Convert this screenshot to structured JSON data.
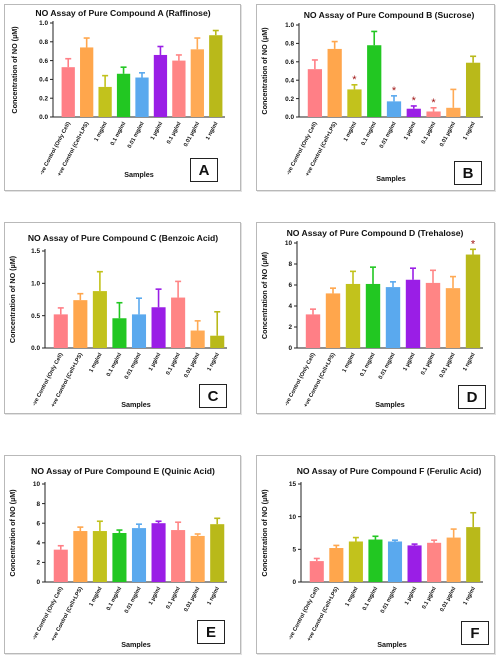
{
  "colors": [
    "#ff7f86",
    "#ffa64c",
    "#c2c21c",
    "#22c722",
    "#5aa9ee",
    "#9a1ee6",
    "#ff8585",
    "#ffaa55",
    "#b9b91a"
  ],
  "star_color": "#a01515",
  "chart_data": [
    {
      "type": "bar",
      "panel_label": "A",
      "title": "NO Assay of Pure Compound A (Raffinose)",
      "ylabel": "Concentration of NO (µM)",
      "xlabel": "Samples",
      "ylim": [
        0,
        1.0
      ],
      "yticks": [
        "0.0",
        "0.2",
        "0.4",
        "0.6",
        "0.8",
        "1.0"
      ],
      "ytick_values": [
        0,
        0.2,
        0.4,
        0.6,
        0.8,
        1.0
      ],
      "categories": [
        "-ve Control (Only Cell)",
        "+ve Control (Cell+LPS)",
        "1 mg/ml",
        "0.1 mg/ml",
        "0.01 mg/ml",
        "1 µg/ml",
        "0.1 µg/ml",
        "0.01 µg/ml",
        "1 ng/ml"
      ],
      "values": [
        0.53,
        0.74,
        0.32,
        0.46,
        0.42,
        0.66,
        0.6,
        0.72,
        0.87
      ],
      "errors": [
        0.09,
        0.1,
        0.12,
        0.07,
        0.05,
        0.09,
        0.06,
        0.12,
        0.05
      ],
      "significant": [
        false,
        false,
        false,
        false,
        false,
        false,
        false,
        false,
        false
      ]
    },
    {
      "type": "bar",
      "panel_label": "B",
      "title": "NO Assay of Pure Compound B (Sucrose)",
      "ylabel": "Concentration of NO (µM)",
      "xlabel": "Samples",
      "ylim": [
        0,
        1.0
      ],
      "yticks": [
        "0.0",
        "0.2",
        "0.4",
        "0.6",
        "0.8",
        "1.0"
      ],
      "ytick_values": [
        0,
        0.2,
        0.4,
        0.6,
        0.8,
        1.0
      ],
      "categories": [
        "-ve Control (Only Cell)",
        "+ve Control (Cell+LPS)",
        "1 mg/ml",
        "0.1 mg/ml",
        "0.01 mg/ml",
        "1 µg/ml",
        "0.1 µg/ml",
        "0.01 µg/ml",
        "1 ng/ml"
      ],
      "values": [
        0.52,
        0.74,
        0.3,
        0.78,
        0.17,
        0.09,
        0.06,
        0.1,
        0.59
      ],
      "errors": [
        0.1,
        0.08,
        0.05,
        0.15,
        0.06,
        0.03,
        0.04,
        0.2,
        0.07
      ],
      "significant": [
        false,
        false,
        true,
        false,
        true,
        true,
        true,
        false,
        false
      ]
    },
    {
      "type": "bar",
      "panel_label": "C",
      "title": "NO Assay of Pure Compound C (Benzoic Acid)",
      "ylabel": "Concentration of NO (µM)",
      "xlabel": "Samples",
      "ylim": [
        0,
        1.5
      ],
      "yticks": [
        "0.0",
        "0.5",
        "1.0",
        "1.5"
      ],
      "ytick_values": [
        0,
        0.5,
        1.0,
        1.5
      ],
      "categories": [
        "-ve Control (Only Cell)",
        "+ve Control (Cell+LPS)",
        "1 mg/ml",
        "0.1 mg/ml",
        "0.01 mg/ml",
        "1 µg/ml",
        "0.1 µg/ml",
        "0.01 µg/ml",
        "1 ng/ml"
      ],
      "values": [
        0.52,
        0.74,
        0.88,
        0.46,
        0.52,
        0.63,
        0.78,
        0.27,
        0.19
      ],
      "errors": [
        0.1,
        0.1,
        0.3,
        0.24,
        0.25,
        0.28,
        0.25,
        0.15,
        0.37
      ],
      "significant": [
        false,
        false,
        false,
        false,
        false,
        false,
        false,
        false,
        false
      ]
    },
    {
      "type": "bar",
      "panel_label": "D",
      "title": "NO Assay of Pure Compound D (Trehalose)",
      "ylabel": "Concentration of NO (µM)",
      "xlabel": "Samples",
      "ylim": [
        0,
        10
      ],
      "yticks": [
        "0",
        "2",
        "4",
        "6",
        "8",
        "10"
      ],
      "ytick_values": [
        0,
        2,
        4,
        6,
        8,
        10
      ],
      "categories": [
        "-ve Control (Only Cell)",
        "+ve Control (Cell+LPS)",
        "1 mg/ml",
        "0.1 mg/ml",
        "0.01 mg/ml",
        "1 µg/ml",
        "0.1 µg/ml",
        "0.01 µg/ml",
        "1 ng/ml"
      ],
      "values": [
        3.2,
        5.2,
        6.1,
        6.1,
        5.8,
        6.5,
        6.2,
        5.7,
        8.9
      ],
      "errors": [
        0.5,
        0.5,
        1.2,
        1.6,
        0.5,
        1.1,
        1.2,
        1.1,
        0.5
      ],
      "significant": [
        false,
        false,
        false,
        false,
        false,
        false,
        false,
        false,
        true
      ]
    },
    {
      "type": "bar",
      "panel_label": "E",
      "title": "NO Assay of Pure Compound E (Quinic Acid)",
      "ylabel": "Concentration of NO (µM)",
      "xlabel": "Samples",
      "ylim": [
        0,
        10
      ],
      "yticks": [
        "0",
        "2",
        "4",
        "6",
        "8",
        "10"
      ],
      "ytick_values": [
        0,
        2,
        4,
        6,
        8,
        10
      ],
      "categories": [
        "-ve Control (Only Cell)",
        "+ve Control (Cell+LPS)",
        "1 mg/ml",
        "0.1 mg/ml",
        "0.01 mg/ml",
        "1 µg/ml",
        "0.1 µg/ml",
        "0.01 µg/ml",
        "1 ng/ml"
      ],
      "values": [
        3.3,
        5.2,
        5.2,
        5.0,
        5.5,
        6.0,
        5.3,
        4.7,
        5.9
      ],
      "errors": [
        0.4,
        0.4,
        1.0,
        0.3,
        0.4,
        0.2,
        0.8,
        0.2,
        0.6
      ],
      "significant": [
        false,
        false,
        false,
        false,
        false,
        false,
        false,
        false,
        false
      ]
    },
    {
      "type": "bar",
      "panel_label": "F",
      "title": "NO Assay of Pure Compound F (Ferulic Acid)",
      "ylabel": "Concentration of NO (µM)",
      "xlabel": "Samples",
      "ylim": [
        0,
        15
      ],
      "yticks": [
        "0",
        "5",
        "10",
        "15"
      ],
      "ytick_values": [
        0,
        5,
        10,
        15
      ],
      "categories": [
        "-ve Control (Only Cell)",
        "+ve Control (Cell+LPS)",
        "1 mg/ml",
        "0.1 mg/ml",
        "0.01 mg/ml",
        "1 µg/ml",
        "0.1 µg/ml",
        "0.01 µg/ml",
        "1 ng/ml"
      ],
      "values": [
        3.2,
        5.2,
        6.2,
        6.5,
        6.2,
        5.6,
        6.0,
        6.8,
        8.4
      ],
      "errors": [
        0.4,
        0.4,
        0.6,
        0.5,
        0.2,
        0.2,
        0.4,
        1.3,
        2.2
      ],
      "significant": [
        false,
        false,
        false,
        false,
        false,
        false,
        false,
        false,
        false
      ]
    }
  ]
}
